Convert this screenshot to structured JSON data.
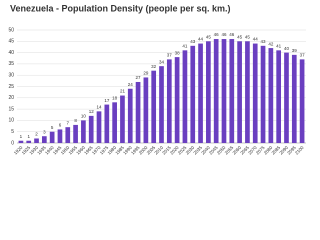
{
  "chart_data": {
    "type": "bar",
    "title": "Venezuela - Population Density (people per sq. km.)",
    "categories": [
      "1920",
      "1925",
      "1930",
      "1935",
      "1940",
      "1945",
      "1950",
      "1955",
      "1960",
      "1965",
      "1970",
      "1975",
      "1980",
      "1985",
      "1990",
      "1995",
      "2000",
      "2005",
      "2010",
      "2015",
      "2020",
      "2025",
      "2030",
      "2035",
      "2040",
      "2045",
      "2050",
      "2055",
      "2060",
      "2065",
      "2070",
      "2075",
      "2080",
      "2085",
      "2090",
      "2095",
      "2100"
    ],
    "values": [
      1,
      1,
      2,
      3,
      5,
      6,
      7,
      8,
      10,
      12,
      14,
      17,
      18,
      21,
      24,
      27,
      29,
      32,
      34,
      37,
      38,
      41,
      43,
      44,
      45,
      46,
      46,
      46,
      45,
      45,
      44,
      43,
      42,
      41,
      40,
      39,
      37
    ],
    "color": "#6a3fc0",
    "ylim": [
      0,
      50
    ],
    "yticks": [
      0,
      5,
      10,
      15,
      20,
      25,
      30,
      35,
      40,
      45,
      50
    ],
    "grid": true
  }
}
